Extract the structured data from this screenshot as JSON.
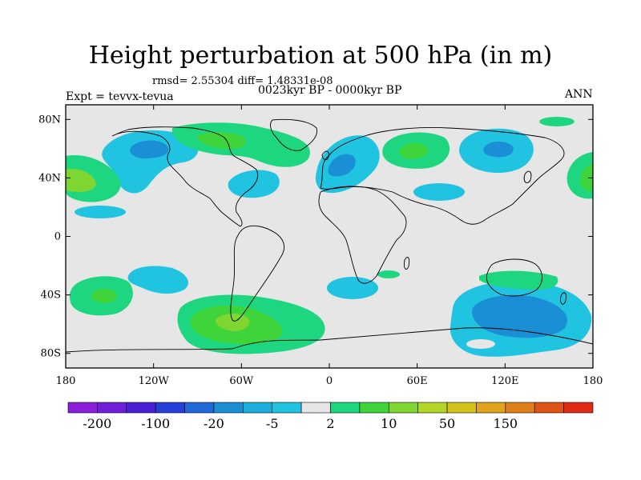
{
  "title": "Height perturbation at 500 hPa (in m)",
  "stats": "rmsd= 2.55304 diff= 1.48331e-08",
  "period": "0023kyr BP - 0000kyr BP",
  "experiment": "Expt = tevvx-tevua",
  "season": "ANN",
  "map": {
    "lon_range": [
      -180,
      180
    ],
    "lat_range": [
      -90,
      90
    ],
    "lat_ticks": [
      {
        "value": 80,
        "label": "80N"
      },
      {
        "value": 40,
        "label": "40N"
      },
      {
        "value": 0,
        "label": "0"
      },
      {
        "value": -40,
        "label": "40S"
      },
      {
        "value": -80,
        "label": "80S"
      }
    ],
    "lon_ticks": [
      {
        "value": -180,
        "label": "180"
      },
      {
        "value": -120,
        "label": "120W"
      },
      {
        "value": -60,
        "label": "60W"
      },
      {
        "value": 0,
        "label": "0"
      },
      {
        "value": 60,
        "label": "60E"
      },
      {
        "value": 120,
        "label": "120E"
      },
      {
        "value": 180,
        "label": "180"
      }
    ],
    "background_color": "#e6e6e6"
  },
  "colorbar": {
    "colors": [
      "#8c1fdc",
      "#6f1ed9",
      "#4a20d6",
      "#2540d8",
      "#1f6ad8",
      "#1a8fd6",
      "#19aedc",
      "#20c3e0",
      "#e6e6e6",
      "#1ed680",
      "#3fd43a",
      "#7fd630",
      "#b3d628",
      "#d4c21c",
      "#e0a41a",
      "#e07e18",
      "#e05416",
      "#e02a14"
    ],
    "labels": [
      "-200",
      "-100",
      "-20",
      "-5",
      "2",
      "10",
      "50",
      "150"
    ],
    "label_slots": [
      1,
      3,
      5,
      7,
      9,
      11,
      13,
      15
    ]
  },
  "anomaly_regions": [
    {
      "level": "negative",
      "lon": -110,
      "lat": 50
    },
    {
      "level": "negative",
      "lon": -50,
      "lat": 40
    },
    {
      "level": "positive",
      "lon": -40,
      "lat": 65
    },
    {
      "level": "negative",
      "lon": 10,
      "lat": 45
    },
    {
      "level": "positive",
      "lon": 60,
      "lat": 50
    },
    {
      "level": "negative",
      "lon": 118,
      "lat": 55
    },
    {
      "level": "positive",
      "lon": 170,
      "lat": 45
    },
    {
      "level": "positive",
      "lon": -155,
      "lat": -45
    },
    {
      "level": "positive",
      "lon": -60,
      "lat": -65
    },
    {
      "level": "negative",
      "lon": 130,
      "lat": -55
    },
    {
      "level": "positive",
      "lon": 130,
      "lat": -30
    }
  ]
}
